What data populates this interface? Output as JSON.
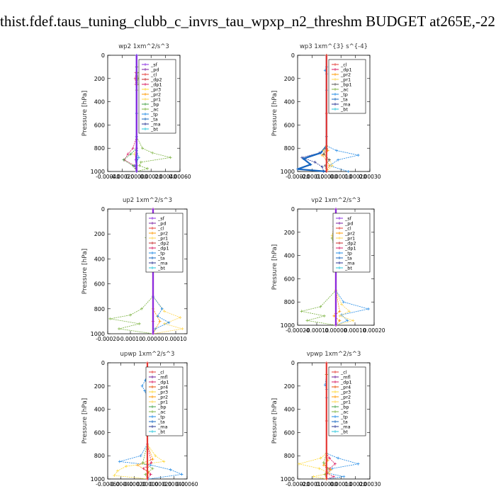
{
  "title": "thist.fdef.taus_tuning_clubb_c_invrs_tau_wpxp_n2_threshm  BUDGET at265E,-22",
  "colors": {
    "sf": "#8a2be2",
    "pd": "#7b1fa2",
    "cl": "#e53935",
    "dp2": "#c62828",
    "dp1": "#d81b60",
    "pr2": "#ff9800",
    "pr3": "#fdd835",
    "pr1": "#ffd54f",
    "pr4": "#e65100",
    "bp": "#43a047",
    "ac": "#7cb342",
    "tp": "#1e88e5",
    "ta": "#1565c0",
    "ma": "#283593",
    "bt": "#26c6da",
    "mfl": "#6a1b9a"
  },
  "chart_data": [
    {
      "type": "line",
      "title": "wp2  1xm^2/s^3",
      "ylabel": "Pressure [hPa]",
      "ylim": [
        1000,
        0
      ],
      "xlim": [
        -0.0004,
        0.0006
      ],
      "xticks": [
        "-0.00040",
        "-0.00020",
        "0.00000",
        "0.00020",
        "0.00040",
        "0.00060"
      ],
      "yticks": [
        "0",
        "200",
        "400",
        "600",
        "800",
        "1000"
      ],
      "legend": [
        "_sf",
        "_pd",
        "_cl",
        "_dp2",
        "_dp1",
        "_pr3",
        "_pr2",
        "_pr1",
        "_bp",
        "_ac",
        "_tp",
        "_ta",
        "_ma",
        "_bt"
      ],
      "series": [
        {
          "key": "pr1",
          "x": [
            0,
            1e-05,
            2e-05,
            1e-05,
            0,
            0,
            0,
            -3e-05,
            0,
            0,
            0
          ],
          "y": [
            100,
            150,
            200,
            250,
            300,
            700,
            800,
            850,
            900,
            950,
            1000
          ]
        },
        {
          "key": "dp1",
          "x": [
            0,
            -1e-05,
            -2e-05,
            -1e-05,
            0,
            0,
            -5e-05,
            -0.00012,
            -0.00017,
            -3e-05,
            0
          ],
          "y": [
            100,
            150,
            200,
            250,
            300,
            700,
            800,
            850,
            900,
            950,
            1000
          ]
        },
        {
          "key": "ac",
          "x": [
            0,
            1e-05,
            2e-05,
            1e-05,
            0,
            0,
            8e-05,
            0.00022,
            0.00047,
            6e-05,
            4e-05,
            0.00015,
            0
          ],
          "y": [
            100,
            150,
            200,
            250,
            300,
            700,
            800,
            840,
            880,
            920,
            950,
            975,
            1000
          ]
        },
        {
          "key": "bp",
          "x": [
            0,
            0,
            0,
            -8e-05,
            -0.00018,
            -5e-05,
            0
          ],
          "y": [
            100,
            700,
            800,
            850,
            900,
            950,
            1000
          ]
        },
        {
          "key": "tp",
          "x": [
            0,
            0,
            0,
            3e-05,
            -2e-05,
            0
          ],
          "y": [
            0,
            700,
            820,
            880,
            950,
            1000
          ]
        },
        {
          "key": "ta",
          "x": [
            0,
            0,
            0,
            0
          ],
          "y": [
            0,
            500,
            900,
            1000
          ]
        },
        {
          "key": "sf",
          "x": [
            0,
            0,
            -1e-05,
            0,
            0
          ],
          "y": [
            0,
            800,
            900,
            950,
            1000
          ]
        }
      ]
    },
    {
      "type": "line",
      "title": "wp3  1xm^{3} s^{-4}",
      "ylabel": "Pressure [hPa]",
      "ylim": [
        1000,
        0
      ],
      "xlim": [
        -0.0002,
        0.0003
      ],
      "xticks": [
        "-0.00020",
        "-0.00010",
        "0.00000",
        "0.00010",
        "0.00020",
        "0.00030"
      ],
      "yticks": [
        "0",
        "200",
        "400",
        "600",
        "800",
        "1000"
      ],
      "legend": [
        "_cl",
        "_dp1",
        "_pr2",
        "_pr1",
        "_bp1",
        "_ac",
        "_tp",
        "_ta",
        "_ma",
        "_bt"
      ],
      "series": [
        {
          "key": "tp",
          "x": [
            0,
            0,
            -1e-05,
            0,
            0,
            0,
            7e-05,
            0.00022,
            8e-05,
            2e-05,
            0.00015
          ],
          "y": [
            0,
            100,
            130,
            160,
            300,
            780,
            820,
            860,
            900,
            950,
            1000
          ]
        },
        {
          "key": "ma",
          "x": [
            0,
            0,
            0,
            -5e-05,
            -0.00017,
            -8e-05,
            -3e-05,
            -2e-05
          ],
          "y": [
            0,
            700,
            800,
            840,
            880,
            920,
            960,
            1000
          ]
        },
        {
          "key": "ta",
          "x": [
            0,
            0,
            -4e-05,
            -0.00016,
            -0.00011,
            -0.0002,
            0
          ],
          "y": [
            0,
            780,
            840,
            890,
            940,
            980,
            1000
          ]
        },
        {
          "key": "pr1",
          "x": [
            0,
            0,
            -2e-05,
            -1e-05,
            2e-05,
            4e-05,
            0
          ],
          "y": [
            0,
            780,
            820,
            860,
            900,
            950,
            1000
          ]
        },
        {
          "key": "pr2",
          "x": [
            0,
            0,
            1e-05,
            -3e-05,
            0,
            2e-05,
            0
          ],
          "y": [
            0,
            780,
            820,
            860,
            900,
            950,
            1000
          ]
        },
        {
          "key": "bp1",
          "x": [
            0,
            0,
            -2e-05,
            2e-05,
            -1e-05,
            0
          ],
          "y": [
            0,
            800,
            850,
            900,
            950,
            1000
          ]
        },
        {
          "key": "cl",
          "x": [
            0,
            0,
            0,
            0
          ],
          "y": [
            0,
            500,
            900,
            1000
          ]
        }
      ]
    },
    {
      "type": "line",
      "title": "up2  1xm^2/s^3",
      "ylabel": "Pressure [hPa]",
      "ylim": [
        1000,
        0
      ],
      "xlim": [
        -0.0002,
        0.00015
      ],
      "xticks": [
        "-0.00020",
        "-0.00010",
        "0.00000",
        "0.00010"
      ],
      "yticks": [
        "0",
        "200",
        "400",
        "600",
        "800",
        "1000"
      ],
      "legend": [
        "_sf",
        "_pd",
        "_cl",
        "_pr2",
        "_pr1",
        "_dp2",
        "_dp1",
        "_tp",
        "_ta",
        "_ma",
        "_bt"
      ],
      "series": [
        {
          "key": "ac",
          "x": [
            0,
            -1e-05,
            -3e-05,
            -2e-05,
            0,
            0,
            -5e-05,
            -0.0001,
            -0.00019,
            -6e-05,
            -0.00015,
            0
          ],
          "y": [
            100,
            150,
            230,
            300,
            350,
            700,
            800,
            850,
            880,
            920,
            960,
            1000
          ]
        },
        {
          "key": "pr1",
          "x": [
            0,
            -1e-05,
            -2e-05,
            -1e-05,
            0,
            0,
            5e-05,
            0.00012,
            5e-05,
            0.00013,
            0
          ],
          "y": [
            100,
            150,
            230,
            300,
            350,
            700,
            820,
            870,
            920,
            960,
            1000
          ]
        },
        {
          "key": "tp",
          "x": [
            0,
            1e-05,
            3e-05,
            1e-05,
            0,
            0,
            4e-05,
            2e-05,
            7e-05,
            1e-05,
            0
          ],
          "y": [
            100,
            150,
            230,
            300,
            350,
            700,
            800,
            860,
            910,
            960,
            1000
          ]
        },
        {
          "key": "pr2",
          "x": [
            0,
            1e-05,
            2e-05,
            0,
            0,
            3e-05,
            0
          ],
          "y": [
            100,
            200,
            260,
            350,
            800,
            900,
            1000
          ]
        },
        {
          "key": "cl",
          "x": [
            0,
            0,
            0,
            0
          ],
          "y": [
            0,
            500,
            900,
            1000
          ]
        },
        {
          "key": "sf",
          "x": [
            0,
            0,
            0
          ],
          "y": [
            0,
            500,
            1000
          ]
        }
      ]
    },
    {
      "type": "line",
      "title": "vp2  1xm^2/s^3",
      "ylabel": "Pressure [hPa]",
      "ylim": [
        1000,
        0
      ],
      "xlim": [
        -0.0002,
        0.0002
      ],
      "xticks": [
        "-0.00020",
        "-0.00010",
        "0.00000",
        "0.00010",
        "0.00020"
      ],
      "yticks": [
        "0",
        "200",
        "400",
        "600",
        "800",
        "1000"
      ],
      "legend": [
        "_sf",
        "_pd",
        "_cl",
        "_pr2",
        "_pr1",
        "_dp2",
        "_dp1",
        "_tp",
        "_ta",
        "_ma",
        "_bt"
      ],
      "series": [
        {
          "key": "tp",
          "x": [
            0,
            1e-05,
            3e-05,
            1e-05,
            0,
            0,
            4e-05,
            0.00017,
            3e-05,
            6e-05,
            0
          ],
          "y": [
            100,
            150,
            260,
            330,
            380,
            700,
            800,
            860,
            910,
            960,
            1000
          ]
        },
        {
          "key": "ac",
          "x": [
            0,
            -1e-05,
            -2e-05,
            -1e-05,
            0,
            0,
            -8e-05,
            -0.00018,
            -6e-05,
            -0.00015,
            0
          ],
          "y": [
            100,
            150,
            250,
            330,
            380,
            700,
            840,
            880,
            920,
            960,
            1000
          ]
        },
        {
          "key": "pr1",
          "x": [
            0,
            -1e-05,
            -2e-05,
            0,
            0,
            3e-05,
            7e-05,
            2e-05,
            9e-05,
            0
          ],
          "y": [
            100,
            150,
            230,
            350,
            700,
            820,
            880,
            920,
            960,
            1000
          ]
        },
        {
          "key": "pr2",
          "x": [
            0,
            0,
            2e-05,
            -1e-05,
            2e-05,
            0
          ],
          "y": [
            100,
            700,
            880,
            920,
            960,
            1000
          ]
        },
        {
          "key": "cl",
          "x": [
            0,
            0,
            0,
            0
          ],
          "y": [
            0,
            500,
            900,
            1000
          ]
        },
        {
          "key": "sf",
          "x": [
            0,
            0,
            0
          ],
          "y": [
            0,
            500,
            1000
          ]
        }
      ]
    },
    {
      "type": "line",
      "title": "upwp  1xm^2/s^3",
      "ylabel": "Pressure [hPa]",
      "ylim": [
        1000,
        0
      ],
      "xlim": [
        -0.0006,
        0.0006
      ],
      "xticks": [
        "-0.00060",
        "-0.00040",
        "-0.00020",
        "0.00000",
        "0.00020",
        "0.00040",
        "0.00060"
      ],
      "yticks": [
        "0",
        "200",
        "400",
        "600",
        "800",
        "1000"
      ],
      "legend": [
        "_cl",
        "_mfl",
        "_dp1",
        "_pr4",
        "_pr3",
        "_pr2",
        "_pr1",
        "_bp",
        "_ac",
        "_tp",
        "_ta",
        "_ma",
        "_bt"
      ],
      "series": [
        {
          "key": "tp",
          "x": [
            0,
            -3e-05,
            -8e-05,
            -4e-05,
            0,
            0,
            -0.0001,
            -0.00042,
            5e-05,
            0.00035,
            0.00052,
            2e-05
          ],
          "y": [
            100,
            150,
            200,
            240,
            300,
            700,
            800,
            850,
            880,
            920,
            960,
            1000
          ]
        },
        {
          "key": "pr3",
          "x": [
            0,
            2e-05,
            6e-05,
            4e-05,
            0,
            0,
            0.00012,
            0.00025,
            -0.00032,
            -0.00045,
            -0.0005,
            0
          ],
          "y": [
            100,
            150,
            200,
            250,
            300,
            700,
            800,
            850,
            890,
            930,
            970,
            1000
          ]
        },
        {
          "key": "pr2",
          "x": [
            0,
            3e-05,
            5e-05,
            2e-05,
            0,
            0,
            8e-05,
            -0.00015,
            2e-05,
            0
          ],
          "y": [
            100,
            160,
            210,
            260,
            300,
            700,
            830,
            880,
            940,
            1000
          ]
        },
        {
          "key": "ac",
          "x": [
            0,
            0,
            -7e-05,
            8e-05,
            -3e-05,
            0
          ],
          "y": [
            100,
            700,
            860,
            910,
            960,
            1000
          ]
        },
        {
          "key": "dp1",
          "x": [
            0,
            0,
            6e-05,
            -6e-05,
            5e-05,
            0
          ],
          "y": [
            100,
            700,
            860,
            910,
            960,
            1000
          ]
        },
        {
          "key": "cl",
          "x": [
            0,
            0,
            0,
            0
          ],
          "y": [
            0,
            500,
            900,
            1000
          ]
        }
      ]
    },
    {
      "type": "line",
      "title": "vpwp  1xm^2/s^3",
      "ylabel": "Pressure [hPa]",
      "ylim": [
        1000,
        0
      ],
      "xlim": [
        -0.0002,
        0.0003
      ],
      "xticks": [
        "-0.00020",
        "-0.00010",
        "0.00000",
        "0.00010",
        "0.00020",
        "0.00030"
      ],
      "yticks": [
        "0",
        "200",
        "400",
        "600",
        "800",
        "1000"
      ],
      "legend": [
        "_cl",
        "_mfl",
        "_dp1",
        "_pr4",
        "_pr3",
        "_pr2",
        "_pr1",
        "_bp",
        "_ac",
        "_tp",
        "_ta",
        "_ma",
        "_bt"
      ],
      "series": [
        {
          "key": "tp",
          "x": [
            0,
            -1e-05,
            0,
            0,
            0,
            8e-05,
            0.00022,
            4e-05,
            1e-05,
            0.00012,
            0
          ],
          "y": [
            100,
            190,
            230,
            300,
            780,
            820,
            870,
            910,
            950,
            980,
            1000
          ]
        },
        {
          "key": "pr3",
          "x": [
            0,
            0,
            -4e-05,
            -0.00019,
            -5e-05,
            2e-05,
            -9e-05,
            0
          ],
          "y": [
            100,
            780,
            820,
            870,
            910,
            950,
            980,
            1000
          ]
        },
        {
          "key": "dp1",
          "x": [
            0,
            0,
            2e-05,
            6e-05,
            2e-05,
            0,
            5e-05,
            0
          ],
          "y": [
            100,
            780,
            820,
            870,
            910,
            950,
            980,
            1000
          ]
        },
        {
          "key": "pr2",
          "x": [
            0,
            0,
            1e-05,
            -2e-05,
            3e-05,
            -1e-05,
            0
          ],
          "y": [
            100,
            780,
            840,
            880,
            920,
            960,
            1000
          ]
        },
        {
          "key": "ac",
          "x": [
            0,
            0,
            -2e-05,
            1e-05,
            -1e-05,
            0
          ],
          "y": [
            100,
            780,
            860,
            910,
            960,
            1000
          ]
        },
        {
          "key": "cl",
          "x": [
            0,
            0,
            0,
            0
          ],
          "y": [
            0,
            500,
            900,
            1000
          ]
        }
      ]
    }
  ]
}
